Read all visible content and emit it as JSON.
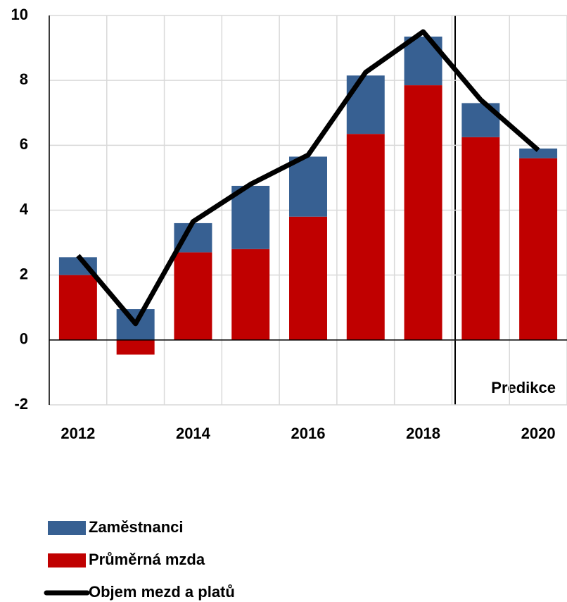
{
  "chart_data": {
    "type": "bar",
    "categories": [
      "2012",
      null,
      "2014",
      null,
      "2016",
      null,
      "2018",
      null,
      "2020"
    ],
    "series": [
      {
        "name": "Zaměstnanci",
        "type": "bar",
        "color": "#376092",
        "values": [
          0.55,
          0.95,
          0.9,
          1.95,
          1.85,
          1.8,
          1.5,
          1.05,
          0.3
        ]
      },
      {
        "name": "Průměrná mzda",
        "type": "bar",
        "color": "#c00000",
        "values": [
          2.0,
          -0.45,
          2.7,
          2.8,
          3.8,
          6.35,
          7.85,
          6.25,
          5.6
        ]
      },
      {
        "name": "Objem mezd a platů",
        "type": "line",
        "color": "#000000",
        "values": [
          2.6,
          0.5,
          3.65,
          4.8,
          5.7,
          8.25,
          9.5,
          7.4,
          5.85
        ]
      }
    ],
    "annotations": [
      "Predikce"
    ],
    "ylim": [
      -2,
      10
    ],
    "yticks": [
      -2,
      0,
      2,
      4,
      6,
      8,
      10
    ],
    "grid": true,
    "legend": "bottom"
  }
}
